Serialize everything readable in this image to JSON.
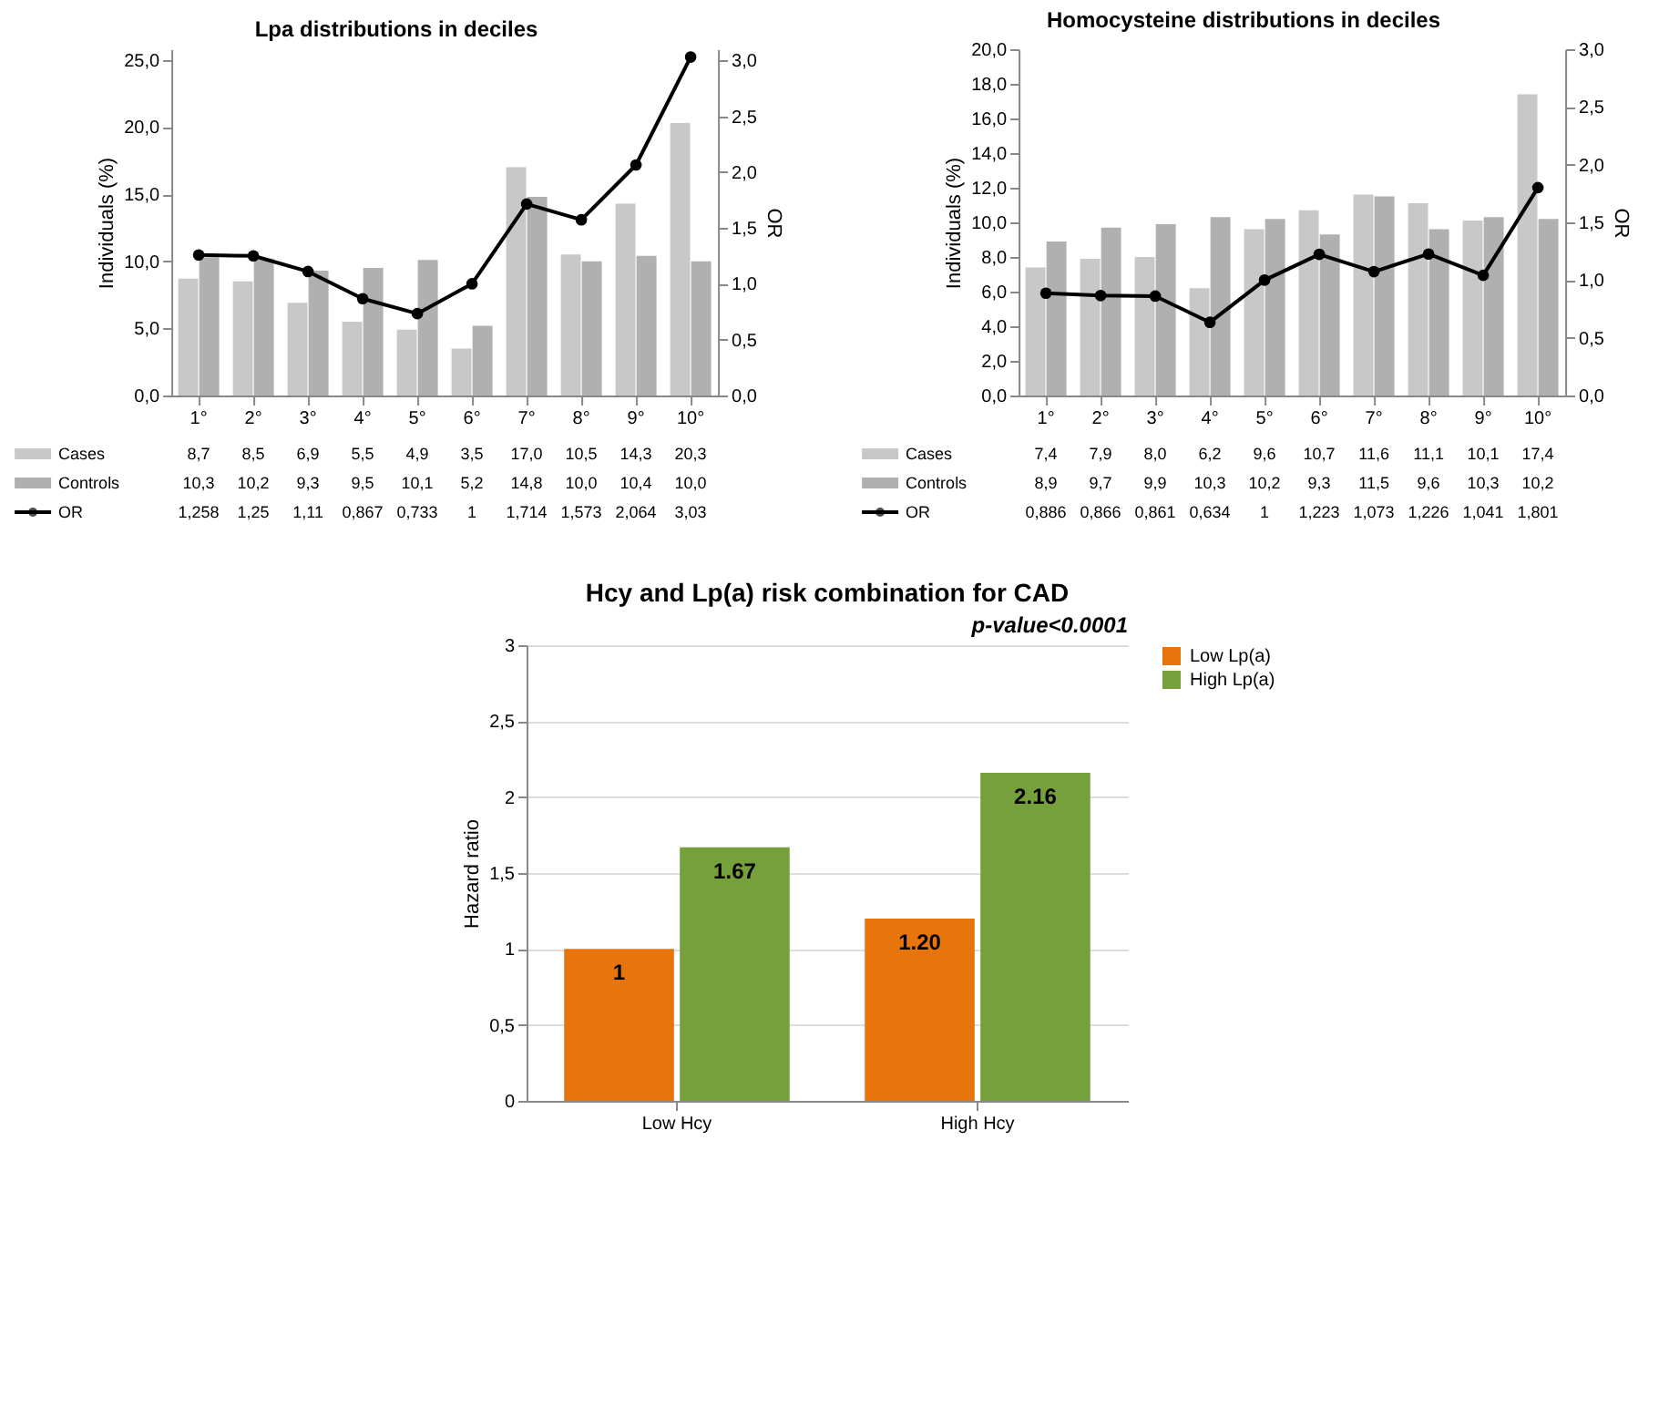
{
  "chart_data": [
    {
      "type": "bar",
      "title": "Lpa distributions in deciles",
      "ylabel": "Individuals (%)",
      "y2label": "OR",
      "categories": [
        "1°",
        "2°",
        "3°",
        "4°",
        "5°",
        "6°",
        "7°",
        "8°",
        "9°",
        "10°"
      ],
      "series": [
        {
          "name": "Cases",
          "color": "#c8c8c8",
          "values": [
            8.7,
            8.5,
            6.9,
            5.5,
            4.9,
            3.5,
            17.0,
            10.5,
            14.3,
            20.3
          ],
          "value_labels": [
            "8,7",
            "8,5",
            "6,9",
            "5,5",
            "4,9",
            "3,5",
            "17,0",
            "10,5",
            "14,3",
            "20,3"
          ]
        },
        {
          "name": "Controls",
          "color": "#b0b0b0",
          "values": [
            10.3,
            10.2,
            9.3,
            9.5,
            10.1,
            5.2,
            14.8,
            10.0,
            10.4,
            10.0
          ],
          "value_labels": [
            "10,3",
            "10,2",
            "9,3",
            "9,5",
            "10,1",
            "5,2",
            "14,8",
            "10,0",
            "10,4",
            "10,0"
          ]
        },
        {
          "name": "OR",
          "type": "line",
          "axis": "y2",
          "color": "#000000",
          "values": [
            1.258,
            1.25,
            1.11,
            0.867,
            0.733,
            1,
            1.714,
            1.573,
            2.064,
            3.03
          ],
          "value_labels": [
            "1,258",
            "1,25",
            "1,11",
            "0,867",
            "0,733",
            "1",
            "1,714",
            "1,573",
            "2,064",
            "3,03"
          ]
        }
      ],
      "ylim": [
        0,
        25.8
      ],
      "yticks": [
        {
          "value": 0,
          "label": "0,0"
        },
        {
          "value": 5,
          "label": "5,0"
        },
        {
          "value": 10,
          "label": "10,0"
        },
        {
          "value": 15,
          "label": "15,0"
        },
        {
          "value": 20,
          "label": "20,0"
        },
        {
          "value": 25,
          "label": "25,0"
        }
      ],
      "y2lim": [
        0,
        3.1
      ],
      "y2ticks": [
        {
          "value": 0,
          "label": "0,0"
        },
        {
          "value": 0.5,
          "label": "0,5"
        },
        {
          "value": 1,
          "label": "1,0"
        },
        {
          "value": 1.5,
          "label": "1,5"
        },
        {
          "value": 2,
          "label": "2,0"
        },
        {
          "value": 2.5,
          "label": "2,5"
        },
        {
          "value": 3,
          "label": "3,0"
        }
      ],
      "marker": "circle",
      "legend": "bottom",
      "grid": false
    },
    {
      "type": "bar",
      "title": "Homocysteine distributions in deciles",
      "ylabel": "Individuals (%)",
      "y2label": "OR",
      "categories": [
        "1°",
        "2°",
        "3°",
        "4°",
        "5°",
        "6°",
        "7°",
        "8°",
        "9°",
        "10°"
      ],
      "series": [
        {
          "name": "Cases",
          "color": "#c8c8c8",
          "values": [
            7.4,
            7.9,
            8.0,
            6.2,
            9.6,
            10.7,
            11.6,
            11.1,
            10.1,
            17.4
          ],
          "value_labels": [
            "7,4",
            "7,9",
            "8,0",
            "6,2",
            "9,6",
            "10,7",
            "11,6",
            "11,1",
            "10,1",
            "17,4"
          ]
        },
        {
          "name": "Controls",
          "color": "#b0b0b0",
          "values": [
            8.9,
            9.7,
            9.9,
            10.3,
            10.2,
            9.3,
            11.5,
            9.6,
            10.3,
            10.2
          ],
          "value_labels": [
            "8,9",
            "9,7",
            "9,9",
            "10,3",
            "10,2",
            "9,3",
            "11,5",
            "9,6",
            "10,3",
            "10,2"
          ]
        },
        {
          "name": "OR",
          "type": "line",
          "axis": "y2",
          "color": "#000000",
          "values": [
            0.886,
            0.866,
            0.861,
            0.634,
            1,
            1.223,
            1.073,
            1.226,
            1.041,
            1.801
          ],
          "value_labels": [
            "0,886",
            "0,866",
            "0,861",
            "0,634",
            "1",
            "1,223",
            "1,073",
            "1,226",
            "1,041",
            "1,801"
          ]
        }
      ],
      "ylim": [
        0,
        20
      ],
      "yticks": [
        {
          "value": 0,
          "label": "0,0"
        },
        {
          "value": 2,
          "label": "2,0"
        },
        {
          "value": 4,
          "label": "4,0"
        },
        {
          "value": 6,
          "label": "6,0"
        },
        {
          "value": 8,
          "label": "8,0"
        },
        {
          "value": 10,
          "label": "10,0"
        },
        {
          "value": 12,
          "label": "12,0"
        },
        {
          "value": 14,
          "label": "14,0"
        },
        {
          "value": 16,
          "label": "16,0"
        },
        {
          "value": 18,
          "label": "18,0"
        },
        {
          "value": 20,
          "label": "20,0"
        }
      ],
      "y2lim": [
        0,
        3
      ],
      "y2ticks": [
        {
          "value": 0,
          "label": "0,0"
        },
        {
          "value": 0.5,
          "label": "0,5"
        },
        {
          "value": 1,
          "label": "1,0"
        },
        {
          "value": 1.5,
          "label": "1,5"
        },
        {
          "value": 2,
          "label": "2,0"
        },
        {
          "value": 2.5,
          "label": "2,5"
        },
        {
          "value": 3,
          "label": "3,0"
        }
      ],
      "marker": "circle",
      "legend": "bottom",
      "grid": false
    },
    {
      "type": "bar",
      "title": "Hcy and Lp(a) risk combination for CAD",
      "ylabel": "Hazard ratio",
      "categories": [
        "Low Hcy",
        "High Hcy"
      ],
      "series": [
        {
          "name": "Low Lp(a)",
          "color": "#e8740c",
          "values": [
            1,
            1.2
          ],
          "value_labels": [
            "1",
            "1.20"
          ]
        },
        {
          "name": "High Lp(a)",
          "color": "#76a03c",
          "values": [
            1.67,
            2.16
          ],
          "value_labels": [
            "1.67",
            "2.16"
          ]
        }
      ],
      "ylim": [
        0,
        3
      ],
      "yticks": [
        0,
        {
          "value": 0.5,
          "label": "0,5"
        },
        1,
        {
          "value": 1.5,
          "label": "1,5"
        },
        2,
        {
          "value": 2.5,
          "label": "2,5"
        },
        3
      ],
      "grid": "y",
      "legend": "right",
      "annotations": [
        "p-value<0.0001"
      ]
    }
  ]
}
